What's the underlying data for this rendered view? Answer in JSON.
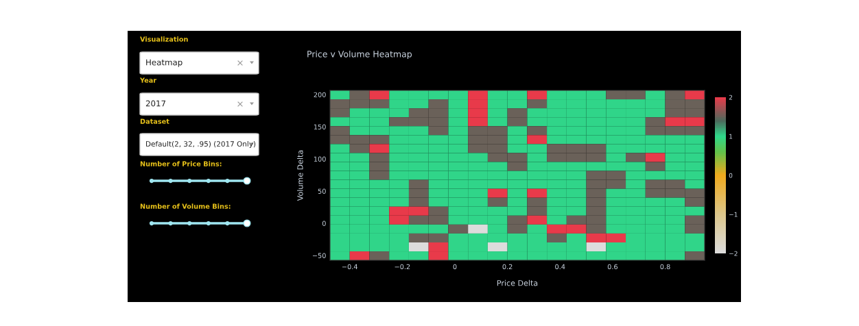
{
  "chart_data": {
    "type": "heatmap",
    "title": "Price v Volume Heatmap",
    "xlabel": "Price Delta",
    "ylabel": "Volume Delta",
    "annotations": [
      "Visualization",
      "Heatmap",
      "Year",
      "2017",
      "Dataset",
      "Default(2, 32, .95) (2017 Only)",
      "Number of Price Bins:",
      "Number of Volume Bins:"
    ],
    "x": [
      -0.4375,
      -0.3625,
      -0.2875,
      -0.2125,
      -0.1375,
      -0.0625,
      0.0125,
      0.0875,
      0.1625,
      0.2375,
      0.3125,
      0.3875,
      0.4625,
      0.5375,
      0.6125,
      0.6875,
      0.7625,
      0.8375,
      0.9125
    ],
    "y": [
      199.6,
      185.7,
      171.8,
      157.9,
      144.0,
      130.1,
      116.2,
      102.3,
      88.4,
      74.5,
      60.6,
      46.7,
      32.8,
      18.9,
      5.0,
      -8.9,
      -22.8,
      -36.7,
      -50.6
    ],
    "xlim": [
      -0.475,
      0.95
    ],
    "ylim": [
      -57.45,
      206.55
    ],
    "xticks": [
      {
        "value": -0.4,
        "label": "−0.4"
      },
      {
        "value": -0.2,
        "label": "−0.2"
      },
      0,
      0.2,
      0.4,
      0.6,
      0.8
    ],
    "yticks": [
      {
        "value": -50,
        "label": "−50"
      },
      0,
      50,
      100,
      150,
      200
    ],
    "clim": [
      -2,
      2
    ],
    "cticks": [
      {
        "value": -2,
        "label": "−2"
      },
      {
        "value": -1,
        "label": "−1"
      },
      0,
      1,
      2
    ],
    "cells": [
      [
        1,
        1.5,
        2,
        1,
        1,
        1,
        1,
        2,
        1,
        1,
        2,
        1,
        1,
        1,
        1.5,
        1.5,
        1,
        1.5,
        2
      ],
      [
        1.5,
        1.5,
        1.5,
        1,
        1,
        1.5,
        1,
        2,
        1,
        1,
        1.5,
        1,
        1,
        1,
        1,
        1,
        1,
        1.5,
        1.5
      ],
      [
        1.5,
        1,
        1,
        1,
        1.5,
        1.5,
        1,
        2,
        1,
        1.5,
        1,
        1,
        1,
        1,
        1,
        1,
        1,
        1.5,
        1.5
      ],
      [
        1,
        1,
        1,
        1.5,
        1.5,
        1.5,
        1,
        2,
        1,
        1.5,
        1,
        1,
        1,
        1,
        1,
        1,
        1.5,
        2,
        2
      ],
      [
        1.5,
        1,
        1,
        1,
        1,
        1.5,
        1,
        1.5,
        1.5,
        1,
        1.5,
        1,
        1,
        1,
        1,
        1,
        1.5,
        1.5,
        1.5
      ],
      [
        1.5,
        1.5,
        1.5,
        1,
        1,
        1,
        1,
        1.5,
        1.5,
        1,
        2,
        1,
        1,
        1,
        1,
        1,
        1,
        1,
        1
      ],
      [
        1,
        1.5,
        2,
        1,
        1,
        1,
        1,
        1.5,
        1.5,
        1,
        1,
        1.5,
        1.5,
        1.5,
        1,
        1,
        1,
        1,
        1
      ],
      [
        1,
        1,
        1.5,
        1,
        1,
        1,
        1,
        1,
        1.5,
        1.5,
        1,
        1.5,
        1.5,
        1.5,
        1,
        1.5,
        2,
        1,
        1
      ],
      [
        1,
        1,
        1.5,
        1,
        1,
        1,
        1,
        1,
        1,
        1.5,
        1,
        1,
        1,
        1,
        1,
        1,
        1.5,
        1,
        1
      ],
      [
        1,
        1,
        1.5,
        1,
        1,
        1,
        1,
        1,
        1,
        1,
        1,
        1,
        1,
        1.5,
        1.5,
        1,
        1,
        1,
        1
      ],
      [
        1,
        1,
        1,
        1,
        1.5,
        1,
        1,
        1,
        1,
        1,
        1,
        1,
        1,
        1.5,
        1.5,
        1,
        1.5,
        1.5,
        1
      ],
      [
        1,
        1,
        1,
        1,
        1.5,
        1,
        1,
        1,
        2,
        1,
        2,
        1,
        1,
        1.5,
        1,
        1,
        1.5,
        1.5,
        1.5
      ],
      [
        1,
        1,
        1,
        1,
        1.5,
        1,
        1,
        1,
        1.5,
        1,
        1.5,
        1,
        1,
        1.5,
        1,
        1,
        1,
        1,
        1.5
      ],
      [
        1,
        1,
        1,
        2,
        2,
        1.5,
        1,
        1,
        1,
        1,
        1.5,
        1,
        1,
        1.5,
        1,
        1,
        1,
        1,
        1
      ],
      [
        1,
        1,
        1,
        2,
        1.5,
        1.5,
        1,
        1,
        1,
        1.5,
        2,
        1,
        1.5,
        1.5,
        1,
        1,
        1,
        1,
        1.5
      ],
      [
        1,
        1,
        1,
        1,
        1,
        1,
        1.5,
        -2,
        1,
        1.5,
        1,
        2,
        2,
        1.5,
        1,
        1,
        1,
        1,
        1.5
      ],
      [
        1,
        1,
        1,
        1,
        1.5,
        1.5,
        1,
        1,
        1,
        1,
        1,
        1.5,
        1,
        2,
        2,
        1,
        1,
        1,
        1
      ],
      [
        1,
        1,
        1,
        1,
        -2,
        2,
        1,
        1,
        -2,
        1,
        1,
        1,
        1,
        -2,
        1,
        1,
        1,
        1,
        1
      ],
      [
        1,
        2,
        1.5,
        1,
        1,
        2,
        1,
        1,
        1,
        1,
        1,
        1,
        1,
        1,
        1,
        1,
        1,
        1,
        1.5
      ]
    ]
  }
}
